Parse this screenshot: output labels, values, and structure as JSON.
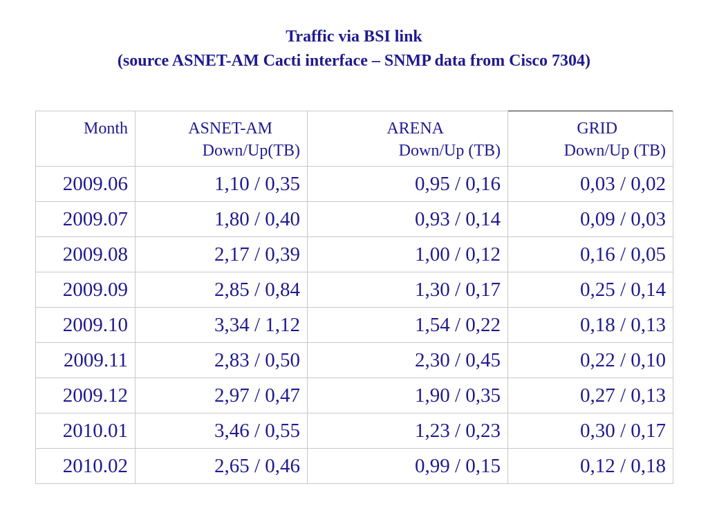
{
  "title": {
    "line1": "Traffic via BSI link",
    "line2": "(source ASNET-AM Cacti interface – SNMP data from Cisco 7304)"
  },
  "table": {
    "headers": [
      {
        "line1": "Month",
        "line2": ""
      },
      {
        "line1": "ASNET-AM",
        "line2": "Down/Up(TB)"
      },
      {
        "line1": "ARENA",
        "line2": "Down/Up (TB)"
      },
      {
        "line1": "GRID",
        "line2": "Down/Up (TB)"
      }
    ],
    "rows": [
      [
        "2009.06",
        "1,10 / 0,35",
        "0,95 / 0,16",
        "0,03 / 0,02"
      ],
      [
        "2009.07",
        "1,80 / 0,40",
        "0,93 / 0,14",
        "0,09 / 0,03"
      ],
      [
        "2009.08",
        "2,17 / 0,39",
        "1,00 / 0,12",
        "0,16 / 0,05"
      ],
      [
        "2009.09",
        "2,85 / 0,84",
        "1,30 / 0,17",
        "0,25 / 0,14"
      ],
      [
        "2009.10",
        "3,34 / 1,12",
        "1,54 / 0,22",
        "0,18 / 0,13"
      ],
      [
        "2009.11",
        "2,83 / 0,50",
        "2,30 / 0,45",
        "0,22 / 0,10"
      ],
      [
        "2009.12",
        "2,97 / 0,47",
        "1,90 / 0,35",
        "0,27 / 0,13"
      ],
      [
        "2010.01",
        "3,46 / 0,55",
        "1,23 / 0,23",
        "0,30 / 0,17"
      ],
      [
        "2010.02",
        "2,65 / 0,46",
        "0,99 / 0,15",
        "0,12 / 0,18"
      ]
    ]
  },
  "colors": {
    "text": "#1f1a8f",
    "grid_line": "#c8c8c8",
    "background": "#ffffff"
  }
}
